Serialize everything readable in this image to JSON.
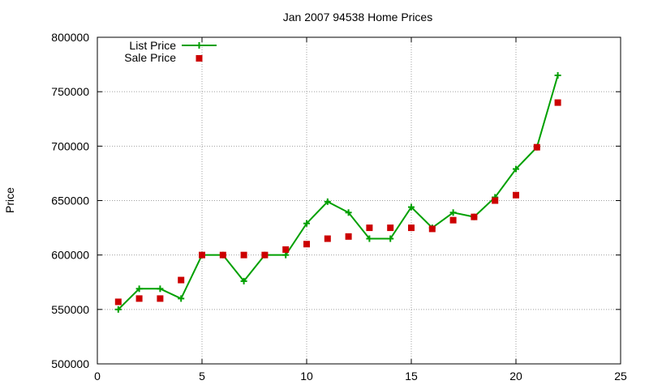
{
  "chart_data": {
    "type": "line",
    "title": "Jan 2007 94538 Home Prices",
    "xlabel": "",
    "ylabel": "Price",
    "xlim": [
      0,
      25
    ],
    "ylim": [
      500000,
      800000
    ],
    "xticks": [
      "0",
      "5",
      "10",
      "15",
      "20",
      "25"
    ],
    "yticks": [
      "500000",
      "550000",
      "600000",
      "650000",
      "700000",
      "750000",
      "800000"
    ],
    "grid": true,
    "legend_position": "top-left",
    "series": [
      {
        "name": "List Price",
        "style": "line+crosses",
        "color": "#00a000",
        "points": [
          [
            1,
            550000
          ],
          [
            2,
            569000
          ],
          [
            3,
            569000
          ],
          [
            4,
            560000
          ],
          [
            5,
            600000
          ],
          [
            6,
            600000
          ],
          [
            7,
            576000
          ],
          [
            8,
            600000
          ],
          [
            9,
            600000
          ],
          [
            10,
            629000
          ],
          [
            11,
            649000
          ],
          [
            12,
            639000
          ],
          [
            13,
            615000
          ],
          [
            14,
            615000
          ],
          [
            15,
            644000
          ],
          [
            16,
            625000
          ],
          [
            17,
            639000
          ],
          [
            18,
            635000
          ],
          [
            19,
            653000
          ],
          [
            20,
            679000
          ],
          [
            21,
            699000
          ],
          [
            22,
            765000
          ]
        ]
      },
      {
        "name": "Sale Price",
        "style": "squares",
        "color": "#cc0000",
        "points": [
          [
            1,
            557000
          ],
          [
            2,
            560000
          ],
          [
            3,
            560000
          ],
          [
            4,
            577000
          ],
          [
            5,
            600000
          ],
          [
            6,
            600000
          ],
          [
            7,
            600000
          ],
          [
            8,
            600000
          ],
          [
            9,
            605000
          ],
          [
            10,
            610000
          ],
          [
            11,
            615000
          ],
          [
            12,
            617000
          ],
          [
            13,
            625000
          ],
          [
            14,
            625000
          ],
          [
            15,
            625000
          ],
          [
            16,
            624000
          ],
          [
            17,
            632000
          ],
          [
            18,
            635000
          ],
          [
            19,
            650000
          ],
          [
            20,
            655000
          ],
          [
            21,
            699000
          ],
          [
            22,
            740000
          ]
        ]
      }
    ]
  }
}
